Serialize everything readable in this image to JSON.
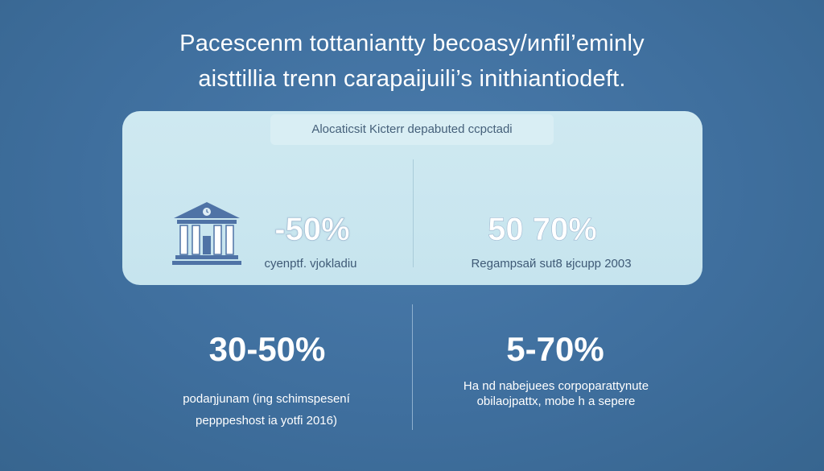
{
  "headline": {
    "line1": "Pacescenm tottaniantty becoasy/иnfil’eminly",
    "line2": "aisttillia trenn carapaijuili’s inithiantiodeft."
  },
  "panel": {
    "tag": "Alocaticsit Kicterr depabuted ccpctadi",
    "left": {
      "icon": "bank-building-icon",
      "value": "-50%",
      "caption": "cyenptf. vjokladiu"
    },
    "right": {
      "value": "50 70%",
      "caption": "Regampsaй sut8 ʁjcupp 2003"
    }
  },
  "lower": {
    "left": {
      "value": "30-50%",
      "caption_line1": "podaŋjunam (ing schimspesení",
      "caption_line2": "pepppeshost ia yotfi 2016)"
    },
    "right": {
      "value": "5-70%",
      "caption_line1": "Ha nd nabejuees corpoparattynute",
      "caption_line2": "obilaojpattx, mobe h a sepere"
    }
  },
  "colors": {
    "background": "#3f6f9e",
    "panel": "#c9e6ef",
    "icon": "#4f73a6"
  }
}
